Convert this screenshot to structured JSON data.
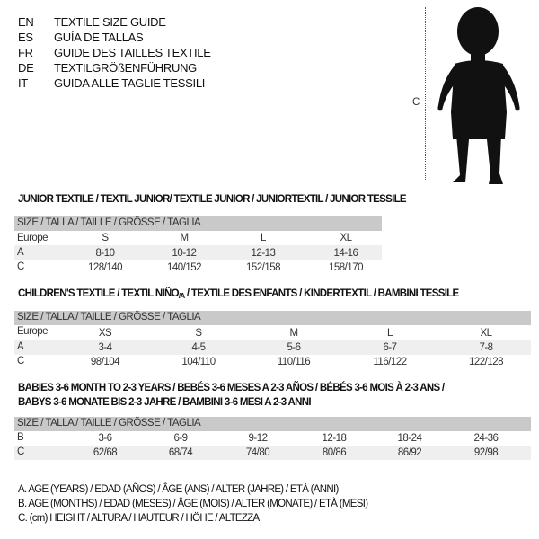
{
  "languages": [
    {
      "code": "EN",
      "title": "TEXTILE SIZE GUIDE"
    },
    {
      "code": "ES",
      "title": "GUÍA DE TALLAS"
    },
    {
      "code": "FR",
      "title": "GUIDE DES TAILLES TEXTILE"
    },
    {
      "code": "DE",
      "title": "TEXTILGRÖßENFÜHRUNG"
    },
    {
      "code": "IT",
      "title": "GUIDA ALLE TAGLIE TESSILI"
    }
  ],
  "figure": {
    "height_label": "C"
  },
  "size_header": "SIZE / TALLA / TAILLE / GRÖSSE / TAGLIA",
  "junior": {
    "title": "JUNIOR TEXTILE / TEXTIL JUNIOR/ TEXTILE JUNIOR / JUNIORTEXTIL / JUNIOR TESSILE",
    "rows": [
      {
        "label": "Europe",
        "values": [
          "S",
          "M",
          "L",
          "XL"
        ]
      },
      {
        "label": "A",
        "values": [
          "8-10",
          "10-12",
          "12-13",
          "14-16"
        ]
      },
      {
        "label": "C",
        "values": [
          "128/140",
          "140/152",
          "152/158",
          "158/170"
        ]
      }
    ]
  },
  "children": {
    "title": "CHILDREN'S TEXTILE / TEXTIL NIÑO",
    "title_sub": "/A",
    "title_rest": " / TEXTILE DES ENFANTS / KINDERTEXTIL / BAMBINI TESSILE",
    "rows": [
      {
        "label": "Europe",
        "values": [
          "XS",
          "S",
          "M",
          "L",
          "XL"
        ]
      },
      {
        "label": "A",
        "values": [
          "3-4",
          "4-5",
          "5-6",
          "6-7",
          "7-8"
        ]
      },
      {
        "label": "C",
        "values": [
          "98/104",
          "104/110",
          "110/116",
          "116/122",
          "122/128"
        ]
      }
    ]
  },
  "babies": {
    "title_line1": "BABIES 3-6 MONTH TO 2-3 YEARS / BEBÉS 3-6 MESES A 2-3 AÑOS / BÉBÉS 3-6 MOIS À 2-3 ANS /",
    "title_line2": "BABYS 3-6 MONATE BIS 2-3 JAHRE / BAMBINI 3-6 MESI A 2-3 ANNI",
    "rows": [
      {
        "label": "B",
        "values": [
          "3-6",
          "6-9",
          "9-12",
          "12-18",
          "18-24",
          "24-36"
        ]
      },
      {
        "label": "C",
        "values": [
          "62/68",
          "68/74",
          "74/80",
          "80/86",
          "86/92",
          "92/98"
        ]
      }
    ]
  },
  "legend": [
    "A. AGE (YEARS) / EDAD (AÑOS) / ÂGE (ANS) / ALTER (JAHRE) / ETÀ (ANNI)",
    "B. AGE (MONTHS) / EDAD (MESES) / ÂGE (MOIS) / ALTER (MONATE) / ETÀ (MESI)",
    "C. (cm) HEIGHT / ALTURA / HAUTEUR / HÖHE / ALTEZZA"
  ]
}
